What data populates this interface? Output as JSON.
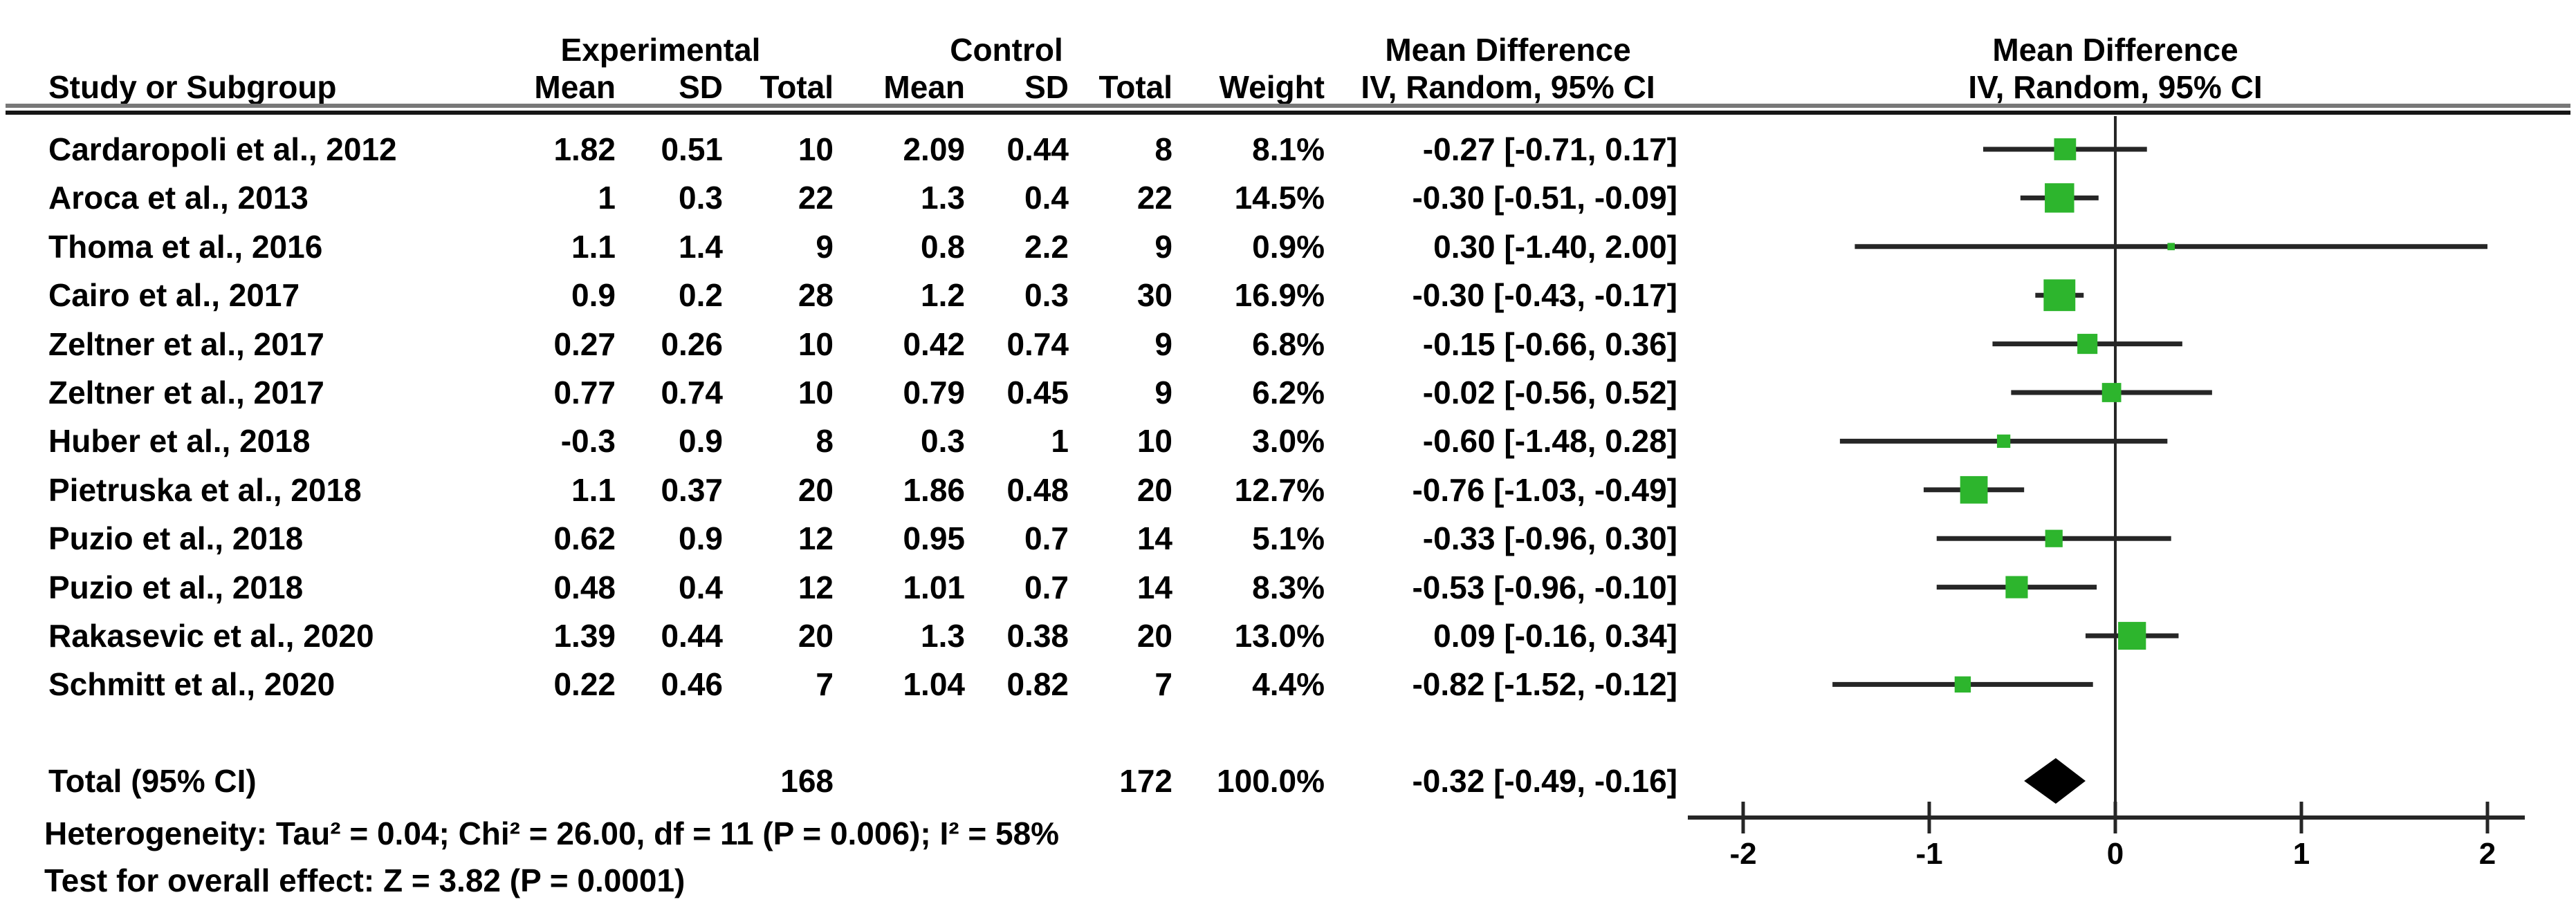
{
  "header": {
    "study_col": "Study or Subgroup",
    "experimental_group": "Experimental",
    "control_group": "Control",
    "mean": "Mean",
    "sd": "SD",
    "total": "Total",
    "weight": "Weight",
    "md_text_line1": "Mean Difference",
    "md_text_line2": "IV, Random, 95% CI",
    "md_plot_line1": "Mean Difference",
    "md_plot_line2": "IV, Random, 95% CI"
  },
  "rows": [
    {
      "study": "Cardaropoli et al., 2012",
      "exp_mean": "1.82",
      "exp_sd": "0.51",
      "exp_total": "10",
      "ctrl_mean": "2.09",
      "ctrl_sd": "0.44",
      "ctrl_total": "8",
      "weight": "8.1%",
      "md_ci": "-0.27 [-0.71, 0.17]"
    },
    {
      "study": "Aroca et al., 2013",
      "exp_mean": "1",
      "exp_sd": "0.3",
      "exp_total": "22",
      "ctrl_mean": "1.3",
      "ctrl_sd": "0.4",
      "ctrl_total": "22",
      "weight": "14.5%",
      "md_ci": "-0.30 [-0.51, -0.09]"
    },
    {
      "study": "Thoma et al., 2016",
      "exp_mean": "1.1",
      "exp_sd": "1.4",
      "exp_total": "9",
      "ctrl_mean": "0.8",
      "ctrl_sd": "2.2",
      "ctrl_total": "9",
      "weight": "0.9%",
      "md_ci": "0.30 [-1.40, 2.00]"
    },
    {
      "study": "Cairo et al., 2017",
      "exp_mean": "0.9",
      "exp_sd": "0.2",
      "exp_total": "28",
      "ctrl_mean": "1.2",
      "ctrl_sd": "0.3",
      "ctrl_total": "30",
      "weight": "16.9%",
      "md_ci": "-0.30 [-0.43, -0.17]"
    },
    {
      "study": "Zeltner et al., 2017",
      "exp_mean": "0.27",
      "exp_sd": "0.26",
      "exp_total": "10",
      "ctrl_mean": "0.42",
      "ctrl_sd": "0.74",
      "ctrl_total": "9",
      "weight": "6.8%",
      "md_ci": "-0.15 [-0.66, 0.36]"
    },
    {
      "study": "Zeltner et al., 2017",
      "exp_mean": "0.77",
      "exp_sd": "0.74",
      "exp_total": "10",
      "ctrl_mean": "0.79",
      "ctrl_sd": "0.45",
      "ctrl_total": "9",
      "weight": "6.2%",
      "md_ci": "-0.02 [-0.56, 0.52]"
    },
    {
      "study": "Huber et al., 2018",
      "exp_mean": "-0.3",
      "exp_sd": "0.9",
      "exp_total": "8",
      "ctrl_mean": "0.3",
      "ctrl_sd": "1",
      "ctrl_total": "10",
      "weight": "3.0%",
      "md_ci": "-0.60 [-1.48, 0.28]"
    },
    {
      "study": "Pietruska et al., 2018",
      "exp_mean": "1.1",
      "exp_sd": "0.37",
      "exp_total": "20",
      "ctrl_mean": "1.86",
      "ctrl_sd": "0.48",
      "ctrl_total": "20",
      "weight": "12.7%",
      "md_ci": "-0.76 [-1.03, -0.49]"
    },
    {
      "study": "Puzio et al., 2018",
      "exp_mean": "0.62",
      "exp_sd": "0.9",
      "exp_total": "12",
      "ctrl_mean": "0.95",
      "ctrl_sd": "0.7",
      "ctrl_total": "14",
      "weight": "5.1%",
      "md_ci": "-0.33 [-0.96, 0.30]"
    },
    {
      "study": "Puzio et al., 2018",
      "exp_mean": "0.48",
      "exp_sd": "0.4",
      "exp_total": "12",
      "ctrl_mean": "1.01",
      "ctrl_sd": "0.7",
      "ctrl_total": "14",
      "weight": "8.3%",
      "md_ci": "-0.53 [-0.96, -0.10]"
    },
    {
      "study": "Rakasevic et al., 2020",
      "exp_mean": "1.39",
      "exp_sd": "0.44",
      "exp_total": "20",
      "ctrl_mean": "1.3",
      "ctrl_sd": "0.38",
      "ctrl_total": "20",
      "weight": "13.0%",
      "md_ci": "0.09 [-0.16, 0.34]"
    },
    {
      "study": "Schmitt et al., 2020",
      "exp_mean": "0.22",
      "exp_sd": "0.46",
      "exp_total": "7",
      "ctrl_mean": "1.04",
      "ctrl_sd": "0.82",
      "ctrl_total": "7",
      "weight": "4.4%",
      "md_ci": "-0.82 [-1.52, -0.12]"
    }
  ],
  "total_row": {
    "label": "Total (95% CI)",
    "exp_total": "168",
    "ctrl_total": "172",
    "weight": "100.0%",
    "md_ci": "-0.32 [-0.49, -0.16]"
  },
  "footnotes": {
    "heterogeneity": "Heterogeneity: Tau² = 0.04; Chi² = 26.00, df = 11 (P = 0.006); I² = 58%",
    "overall_effect": "Test for overall effect: Z = 3.82 (P = 0.0001)"
  },
  "chart_data": {
    "type": "scatter",
    "variant": "forest-plot",
    "title": "Mean Difference",
    "effect_measure": "IV, Random, 95% CI",
    "xlabel": "",
    "x_ticks": [
      -2,
      -1,
      0,
      1,
      2
    ],
    "xlim": [
      -2.2,
      2.2
    ],
    "null_line": 0,
    "legend_position": "none",
    "grid": false,
    "marker_color": "#2db52d",
    "line_color": "#262626",
    "diamond_color": "#000000",
    "studies": [
      {
        "label": "Cardaropoli et al., 2012",
        "md": -0.27,
        "ci_low": -0.71,
        "ci_high": 0.17,
        "weight_pct": 8.1
      },
      {
        "label": "Aroca et al., 2013",
        "md": -0.3,
        "ci_low": -0.51,
        "ci_high": -0.09,
        "weight_pct": 14.5
      },
      {
        "label": "Thoma et al., 2016",
        "md": 0.3,
        "ci_low": -1.4,
        "ci_high": 2.0,
        "weight_pct": 0.9
      },
      {
        "label": "Cairo et al., 2017",
        "md": -0.3,
        "ci_low": -0.43,
        "ci_high": -0.17,
        "weight_pct": 16.9
      },
      {
        "label": "Zeltner et al., 2017",
        "md": -0.15,
        "ci_low": -0.66,
        "ci_high": 0.36,
        "weight_pct": 6.8
      },
      {
        "label": "Zeltner et al., 2017",
        "md": -0.02,
        "ci_low": -0.56,
        "ci_high": 0.52,
        "weight_pct": 6.2
      },
      {
        "label": "Huber et al., 2018",
        "md": -0.6,
        "ci_low": -1.48,
        "ci_high": 0.28,
        "weight_pct": 3.0
      },
      {
        "label": "Pietruska et al., 2018",
        "md": -0.76,
        "ci_low": -1.03,
        "ci_high": -0.49,
        "weight_pct": 12.7
      },
      {
        "label": "Puzio et al., 2018",
        "md": -0.33,
        "ci_low": -0.96,
        "ci_high": 0.3,
        "weight_pct": 5.1
      },
      {
        "label": "Puzio et al., 2018",
        "md": -0.53,
        "ci_low": -0.96,
        "ci_high": -0.1,
        "weight_pct": 8.3
      },
      {
        "label": "Rakasevic et al., 2020",
        "md": 0.09,
        "ci_low": -0.16,
        "ci_high": 0.34,
        "weight_pct": 13.0
      },
      {
        "label": "Schmitt et al., 2020",
        "md": -0.82,
        "ci_low": -1.52,
        "ci_high": -0.12,
        "weight_pct": 4.4
      }
    ],
    "total": {
      "label": "Total (95% CI)",
      "md": -0.32,
      "ci_low": -0.49,
      "ci_high": -0.16,
      "weight_pct": 100.0
    }
  }
}
